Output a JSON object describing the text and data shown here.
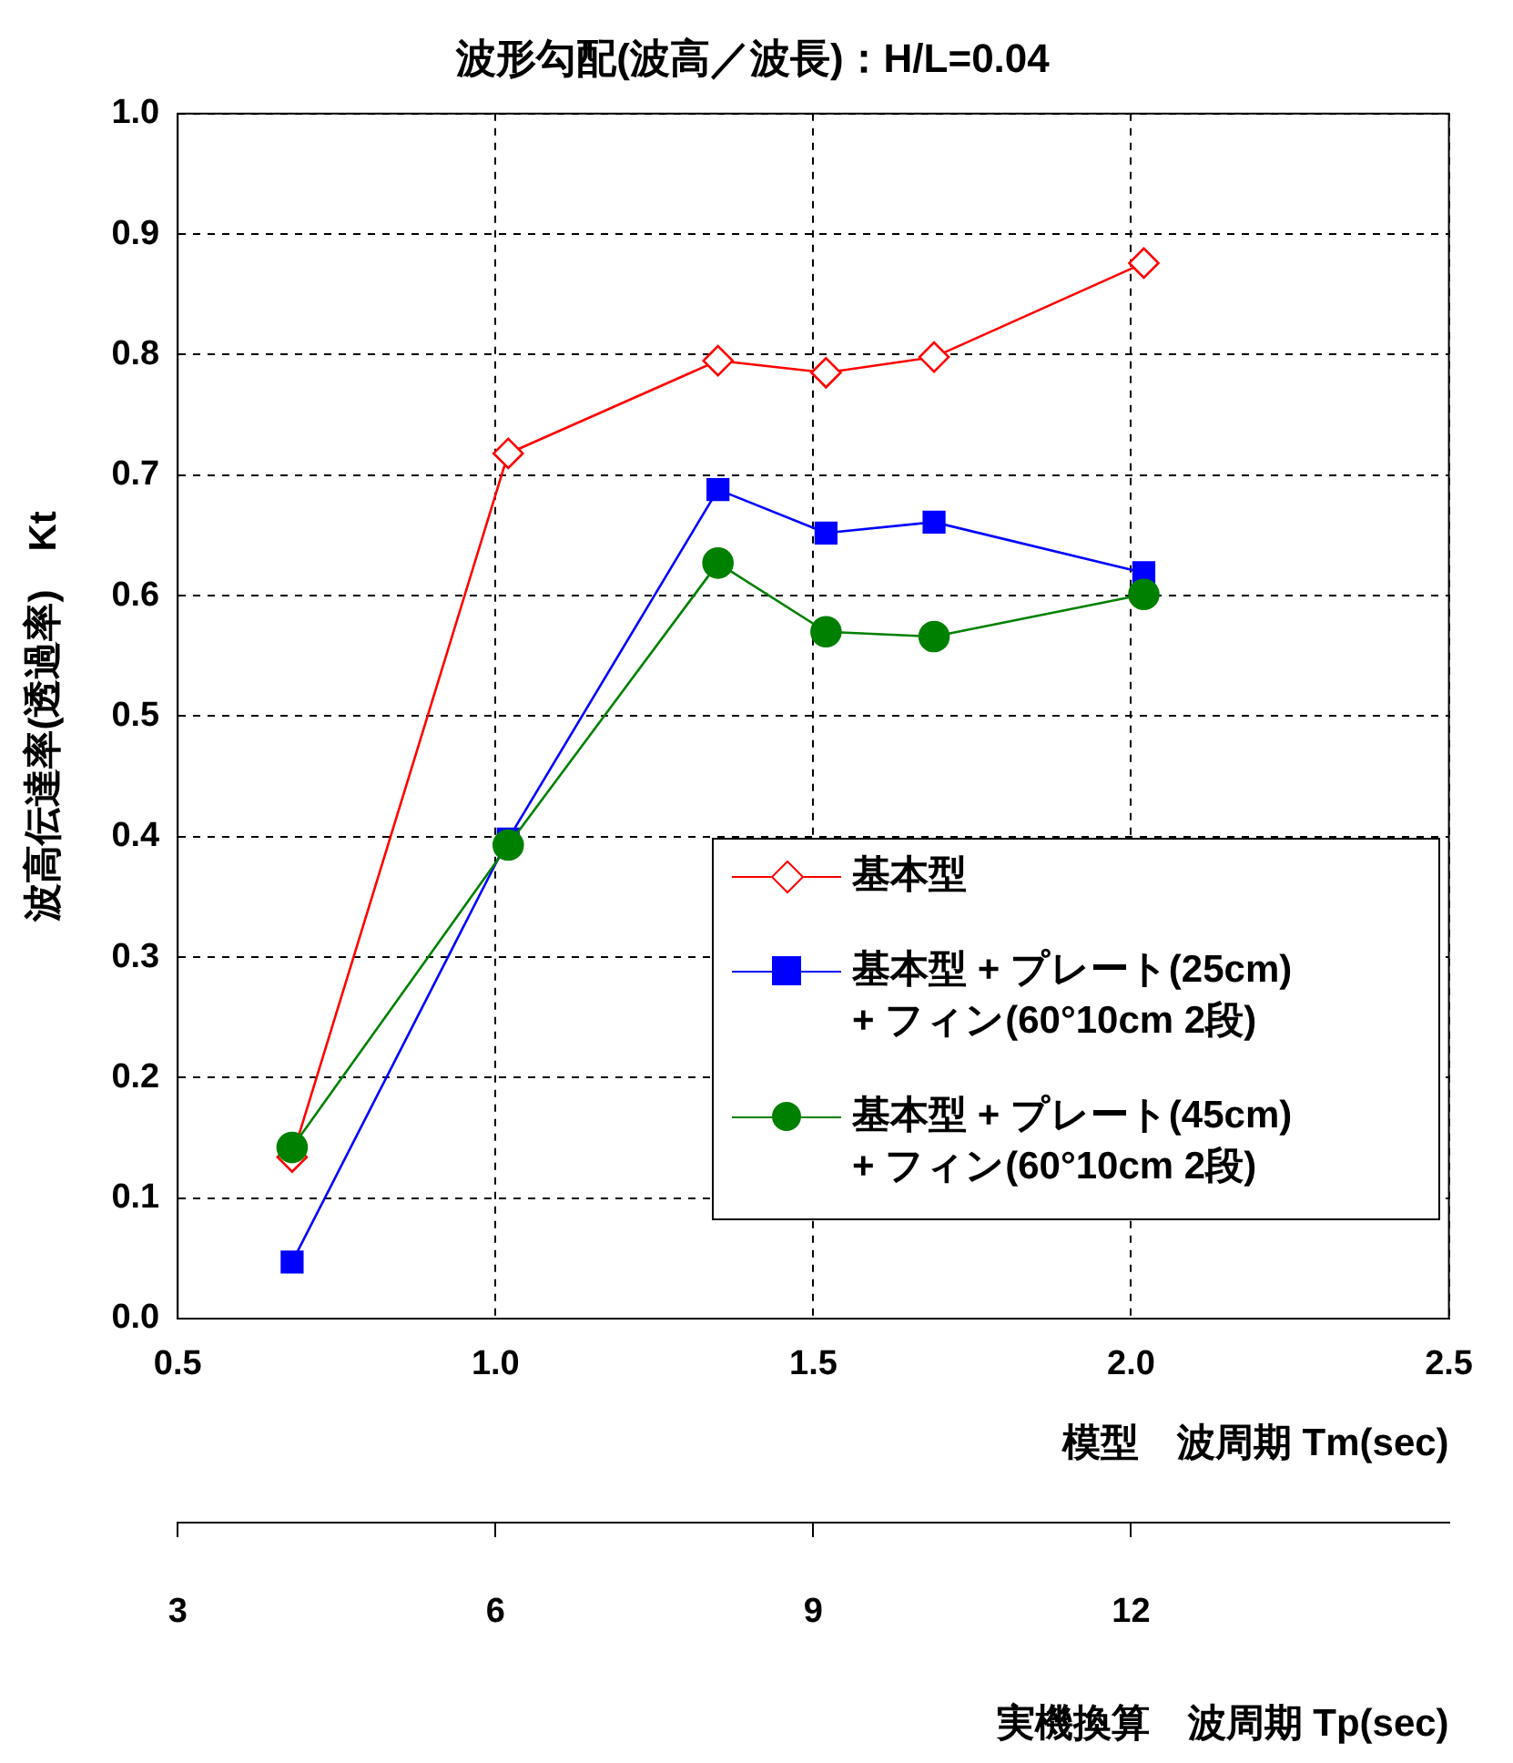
{
  "chart_data": {
    "type": "line",
    "title": "波形勾配(波高／波長)：H/L=0.04",
    "xlabel": "模型　波周期 Tm(sec)",
    "x2label": "実機換算　波周期 Tp(sec)",
    "ylabel": "波高伝達率(透過率)　Kt",
    "x": [
      0.68,
      1.02,
      1.35,
      1.52,
      1.69,
      2.02
    ],
    "series": [
      {
        "name": "基本型",
        "color": "#ff0000",
        "marker": "diamond",
        "values": [
          0.134,
          0.718,
          0.795,
          0.785,
          0.798,
          0.876
        ]
      },
      {
        "name": "基本型 + プレート(25cm)\n+ フィン(60°10cm 2段)",
        "color": "#0000ff",
        "marker": "square",
        "values": [
          0.047,
          0.398,
          0.688,
          0.652,
          0.661,
          0.619
        ]
      },
      {
        "name": "基本型 + プレート(45cm)\n+ フィン(60°10cm 2段)",
        "color": "#008000",
        "marker": "circle",
        "values": [
          0.142,
          0.393,
          0.627,
          0.57,
          0.566,
          0.601
        ]
      }
    ],
    "xlim": [
      0.5,
      2.5
    ],
    "xticks": [
      0.5,
      {
        "value": 1,
        "label": "1.0"
      },
      1.5,
      {
        "value": 2,
        "label": "2.0"
      },
      2.5
    ],
    "x2lim": [
      3,
      15
    ],
    "x2ticks": [
      3,
      6,
      9,
      12
    ],
    "ylim": [
      0,
      1
    ],
    "yticks": [
      {
        "value": 0,
        "label": "0.0"
      },
      0.1,
      0.2,
      0.3,
      0.4,
      0.5,
      0.6,
      0.7,
      0.8,
      0.9,
      {
        "value": 1,
        "label": "1.0"
      }
    ],
    "grid": true,
    "legend": "bottom right",
    "line_style": "solid"
  }
}
